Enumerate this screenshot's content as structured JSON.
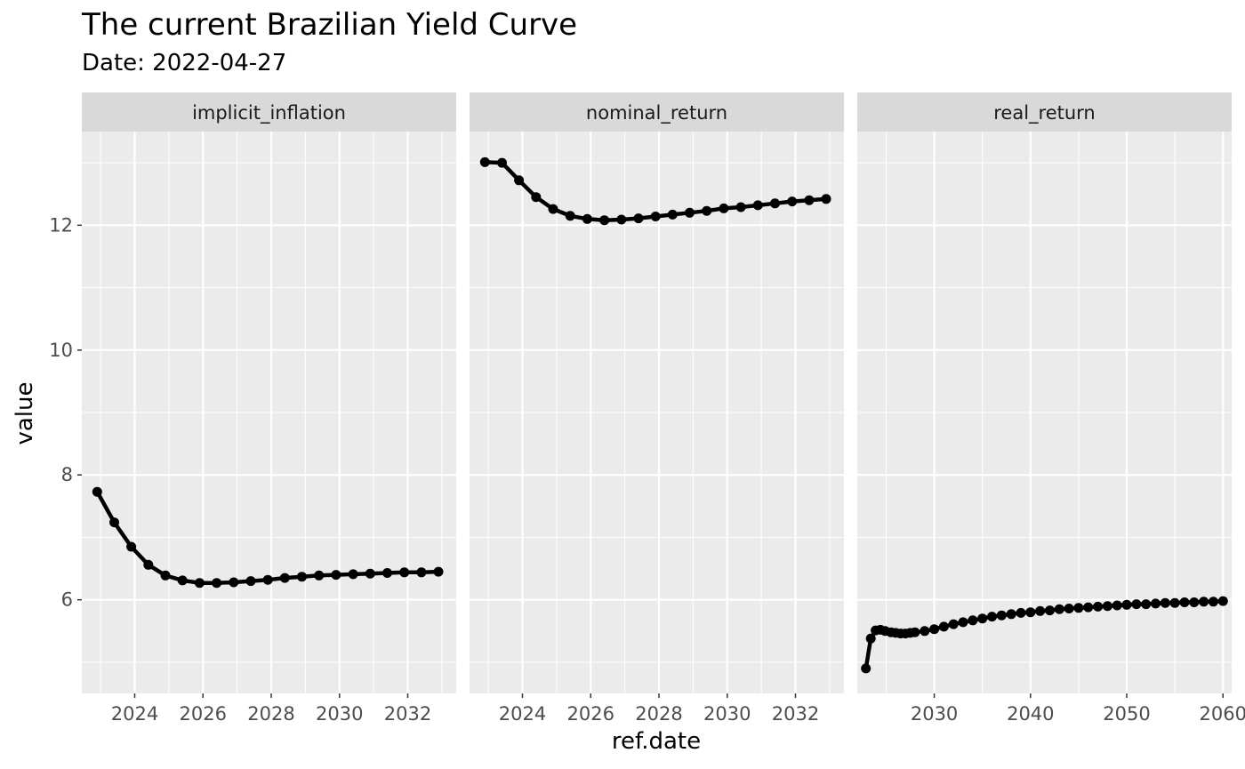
{
  "chart_data": {
    "type": "line",
    "title": "The current Brazilian Yield Curve",
    "subtitle": "Date: 2022-04-27",
    "xlabel": "ref.date",
    "ylabel": "value",
    "ylim": [
      4.5,
      13.5
    ],
    "y_ticks": [
      6,
      8,
      10,
      12
    ],
    "grid": true,
    "line_color": "#000000",
    "panel_background": "#ebebeb",
    "strip_background": "#d9d9d9",
    "panels": [
      {
        "name": "implicit_inflation",
        "xlim": [
          2022.45,
          2033.42
        ],
        "x_ticks": [
          2024,
          2026,
          2028,
          2030,
          2032
        ],
        "x": [
          2022.9,
          2023.4,
          2023.9,
          2024.4,
          2024.9,
          2025.4,
          2025.9,
          2026.4,
          2026.9,
          2027.4,
          2027.9,
          2028.4,
          2028.9,
          2029.4,
          2029.9,
          2030.4,
          2030.9,
          2031.4,
          2031.9,
          2032.4,
          2032.9
        ],
        "y": [
          7.73,
          7.24,
          6.85,
          6.56,
          6.39,
          6.31,
          6.27,
          6.27,
          6.28,
          6.3,
          6.32,
          6.35,
          6.37,
          6.39,
          6.4,
          6.41,
          6.42,
          6.43,
          6.44,
          6.44,
          6.45
        ]
      },
      {
        "name": "nominal_return",
        "xlim": [
          2022.45,
          2033.42
        ],
        "x_ticks": [
          2024,
          2026,
          2028,
          2030,
          2032
        ],
        "x": [
          2022.9,
          2023.4,
          2023.9,
          2024.4,
          2024.9,
          2025.4,
          2025.9,
          2026.4,
          2026.9,
          2027.4,
          2027.9,
          2028.4,
          2028.9,
          2029.4,
          2029.9,
          2030.4,
          2030.9,
          2031.4,
          2031.9,
          2032.4,
          2032.9
        ],
        "y": [
          13.01,
          13.0,
          12.72,
          12.45,
          12.26,
          12.15,
          12.1,
          12.08,
          12.09,
          12.11,
          12.14,
          12.17,
          12.2,
          12.23,
          12.27,
          12.29,
          12.32,
          12.35,
          12.38,
          12.4,
          12.42
        ]
      },
      {
        "name": "real_return",
        "xlim": [
          2022.0,
          2060.9
        ],
        "x_ticks": [
          2030,
          2040,
          2050,
          2060
        ],
        "x": [
          2022.9,
          2023.4,
          2023.9,
          2024.4,
          2024.9,
          2025.5,
          2026,
          2026.5,
          2027,
          2027.5,
          2028,
          2029,
          2030,
          2031,
          2032,
          2033,
          2034,
          2035,
          2036,
          2037,
          2038,
          2039,
          2040,
          2041,
          2042,
          2043,
          2044,
          2045,
          2046,
          2047,
          2048,
          2049,
          2050,
          2051,
          2052,
          2053,
          2054,
          2055,
          2056,
          2057,
          2058,
          2059,
          2060
        ],
        "y": [
          4.9,
          5.38,
          5.51,
          5.52,
          5.5,
          5.48,
          5.47,
          5.46,
          5.46,
          5.47,
          5.48,
          5.5,
          5.53,
          5.57,
          5.61,
          5.64,
          5.67,
          5.7,
          5.73,
          5.75,
          5.77,
          5.79,
          5.8,
          5.82,
          5.83,
          5.85,
          5.86,
          5.87,
          5.88,
          5.89,
          5.9,
          5.91,
          5.92,
          5.93,
          5.93,
          5.94,
          5.95,
          5.95,
          5.96,
          5.96,
          5.97,
          5.97,
          5.98
        ]
      }
    ]
  }
}
